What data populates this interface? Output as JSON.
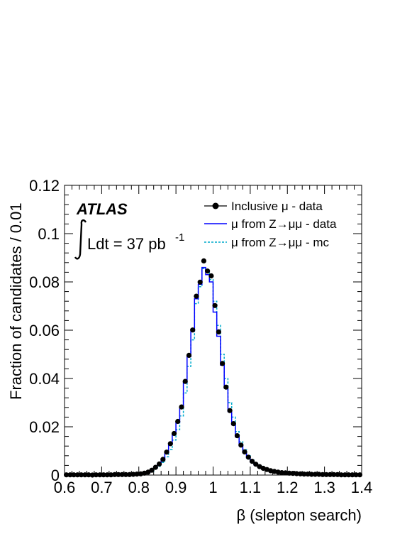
{
  "chart_data": {
    "type": "line",
    "title": "",
    "xlabel": "β (slepton search)",
    "ylabel": "Fraction of candidates / 0.01",
    "xlim": [
      0.6,
      1.4
    ],
    "ylim": [
      0,
      0.12
    ],
    "x_ticks": [
      "0.6",
      "0.7",
      "0.8",
      "0.9",
      "1",
      "1.1",
      "1.2",
      "1.3",
      "1.4"
    ],
    "y_ticks": [
      "0",
      "0.02",
      "0.04",
      "0.06",
      "0.08",
      "0.1",
      "0.12"
    ],
    "annotations": {
      "experiment": "ATLAS",
      "luminosity": "Ldt = 37 pb",
      "luminosity_exponent": "-1"
    },
    "legend_position": "top-right",
    "series": [
      {
        "name": "Inclusive μ - data",
        "style": "markers",
        "color": "#000000",
        "x": [
          0.605,
          0.615,
          0.625,
          0.635,
          0.645,
          0.655,
          0.665,
          0.675,
          0.685,
          0.695,
          0.705,
          0.715,
          0.725,
          0.735,
          0.745,
          0.755,
          0.765,
          0.775,
          0.785,
          0.795,
          0.805,
          0.815,
          0.825,
          0.835,
          0.845,
          0.855,
          0.865,
          0.875,
          0.885,
          0.895,
          0.905,
          0.915,
          0.925,
          0.935,
          0.945,
          0.955,
          0.965,
          0.975,
          0.985,
          0.995,
          1.005,
          1.015,
          1.025,
          1.035,
          1.045,
          1.055,
          1.065,
          1.075,
          1.085,
          1.095,
          1.105,
          1.115,
          1.125,
          1.135,
          1.145,
          1.155,
          1.165,
          1.175,
          1.185,
          1.195,
          1.205,
          1.215,
          1.225,
          1.235,
          1.245,
          1.255,
          1.265,
          1.275,
          1.285,
          1.295,
          1.305,
          1.315,
          1.325,
          1.335,
          1.345,
          1.355,
          1.365,
          1.375,
          1.385,
          1.395
        ],
        "values": [
          0.0001,
          0.0001,
          0.0001,
          0.0001,
          0.0001,
          0.0001,
          0.0001,
          0.0,
          0.0001,
          0.0001,
          0.0001,
          0.0001,
          0.0001,
          0.0002,
          0.0002,
          0.0002,
          0.0002,
          0.0002,
          0.0003,
          0.0004,
          0.0005,
          0.0008,
          0.0012,
          0.002,
          0.0032,
          0.0046,
          0.0065,
          0.0095,
          0.013,
          0.0172,
          0.0222,
          0.0282,
          0.0388,
          0.0496,
          0.0601,
          0.0741,
          0.0799,
          0.0887,
          0.0845,
          0.0825,
          0.0702,
          0.0593,
          0.0462,
          0.0364,
          0.0267,
          0.0213,
          0.0163,
          0.0124,
          0.0096,
          0.0074,
          0.0057,
          0.0045,
          0.0035,
          0.0028,
          0.0023,
          0.0018,
          0.0015,
          0.0012,
          0.001,
          0.0009,
          0.0008,
          0.0007,
          0.0006,
          0.0005,
          0.0004,
          0.0004,
          0.0003,
          0.0003,
          0.0003,
          0.0002,
          0.0002,
          0.0002,
          0.0002,
          0.0002,
          0.0001,
          0.0001,
          0.0001,
          0.0001,
          0.0001,
          0.0001
        ]
      },
      {
        "name": "μ from Z→μμ - data",
        "style": "step-solid",
        "color": "#0000ff",
        "x": [
          0.605,
          0.615,
          0.625,
          0.635,
          0.645,
          0.655,
          0.665,
          0.675,
          0.685,
          0.695,
          0.705,
          0.715,
          0.725,
          0.735,
          0.745,
          0.755,
          0.765,
          0.775,
          0.785,
          0.795,
          0.805,
          0.815,
          0.825,
          0.835,
          0.845,
          0.855,
          0.865,
          0.875,
          0.885,
          0.895,
          0.905,
          0.915,
          0.925,
          0.935,
          0.945,
          0.955,
          0.965,
          0.975,
          0.985,
          0.995,
          1.005,
          1.015,
          1.025,
          1.035,
          1.045,
          1.055,
          1.065,
          1.075,
          1.085,
          1.095,
          1.105,
          1.115,
          1.125,
          1.135,
          1.145,
          1.155,
          1.165,
          1.175,
          1.185,
          1.195,
          1.205,
          1.215,
          1.225,
          1.235,
          1.245,
          1.255,
          1.265,
          1.275,
          1.285,
          1.295,
          1.305,
          1.315,
          1.325,
          1.335,
          1.345,
          1.355,
          1.365,
          1.375,
          1.385,
          1.395
        ],
        "values": [
          0.0,
          0.0,
          0.0,
          0.0,
          0.0,
          0.0,
          0.0,
          0.0,
          0.0,
          0.0,
          0.0,
          0.0,
          0.0,
          0.0,
          0.0001,
          0.0001,
          0.0001,
          0.0001,
          0.0002,
          0.0003,
          0.0004,
          0.0007,
          0.0011,
          0.0019,
          0.0031,
          0.0045,
          0.0064,
          0.0093,
          0.0127,
          0.017,
          0.0218,
          0.0279,
          0.0383,
          0.049,
          0.0596,
          0.073,
          0.079,
          0.086,
          0.083,
          0.08,
          0.0675,
          0.0575,
          0.0455,
          0.036,
          0.0263,
          0.0208,
          0.0158,
          0.0121,
          0.0093,
          0.0071,
          0.0054,
          0.0042,
          0.0033,
          0.0026,
          0.0021,
          0.0016,
          0.0013,
          0.001,
          0.0008,
          0.0007,
          0.0006,
          0.0005,
          0.0004,
          0.0004,
          0.0003,
          0.0003,
          0.0002,
          0.0002,
          0.0002,
          0.0002,
          0.0001,
          0.0001,
          0.0001,
          0.0001,
          0.0001,
          0.0,
          0.0,
          0.0,
          0.0,
          0.0
        ]
      },
      {
        "name": "μ from Z→μμ - mc",
        "style": "step-dashed",
        "color": "#00aacc",
        "x": [
          0.605,
          0.615,
          0.625,
          0.635,
          0.645,
          0.655,
          0.665,
          0.675,
          0.685,
          0.695,
          0.705,
          0.715,
          0.725,
          0.735,
          0.745,
          0.755,
          0.765,
          0.775,
          0.785,
          0.795,
          0.805,
          0.815,
          0.825,
          0.835,
          0.845,
          0.855,
          0.865,
          0.875,
          0.885,
          0.895,
          0.905,
          0.915,
          0.925,
          0.935,
          0.945,
          0.955,
          0.965,
          0.975,
          0.985,
          0.995,
          1.005,
          1.015,
          1.025,
          1.035,
          1.045,
          1.055,
          1.065,
          1.075,
          1.085,
          1.095,
          1.105,
          1.115,
          1.125,
          1.135,
          1.145,
          1.155,
          1.165,
          1.175,
          1.185,
          1.195,
          1.205,
          1.215,
          1.225,
          1.235,
          1.245,
          1.255,
          1.265,
          1.275,
          1.285,
          1.295,
          1.305,
          1.315,
          1.325,
          1.335,
          1.345,
          1.355,
          1.365,
          1.375,
          1.385,
          1.395
        ],
        "values": [
          0.0,
          0.0,
          0.0,
          0.0,
          0.0,
          0.0,
          0.0,
          0.0,
          0.0,
          0.0,
          0.0,
          0.0,
          0.0,
          0.0,
          0.0,
          0.0001,
          0.0001,
          0.0001,
          0.0001,
          0.0002,
          0.0003,
          0.0005,
          0.0008,
          0.0014,
          0.0024,
          0.0036,
          0.0052,
          0.0076,
          0.0106,
          0.0145,
          0.0188,
          0.0245,
          0.034,
          0.045,
          0.056,
          0.071,
          0.078,
          0.0855,
          0.084,
          0.081,
          0.072,
          0.062,
          0.05,
          0.04,
          0.03,
          0.024,
          0.018,
          0.0138,
          0.0105,
          0.008,
          0.0062,
          0.0048,
          0.0038,
          0.003,
          0.0024,
          0.0019,
          0.0015,
          0.0012,
          0.001,
          0.0008,
          0.0007,
          0.0006,
          0.0005,
          0.0004,
          0.0004,
          0.0003,
          0.0003,
          0.0002,
          0.0002,
          0.0002,
          0.0001,
          0.0001,
          0.0001,
          0.0001,
          0.0001,
          0.0,
          0.0,
          0.0,
          0.0,
          0.0
        ]
      }
    ]
  }
}
